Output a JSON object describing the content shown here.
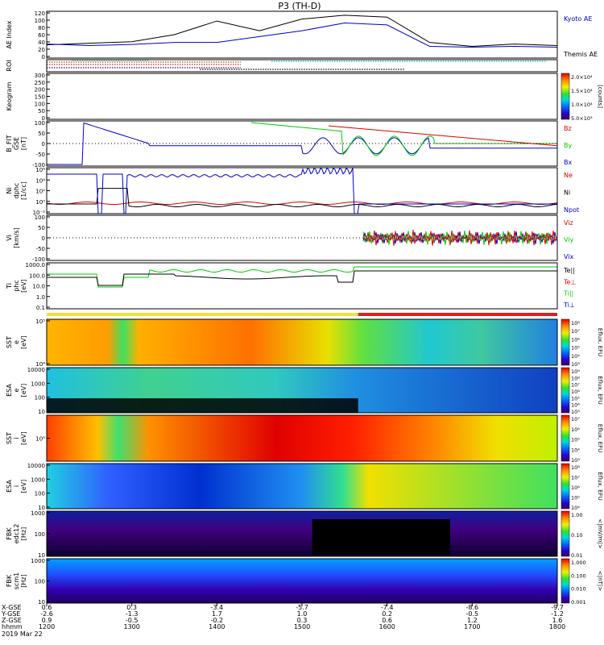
{
  "title": "P3 (TH-D)",
  "date": "2019 Mar 22",
  "colors": {
    "black": "#000000",
    "blue": "#0000cc",
    "red": "#dd0000",
    "green": "#00cc00",
    "axis": "#000000"
  },
  "chart_data": [
    {
      "id": "ae",
      "type": "line",
      "ylabel": "AE Index",
      "ylim": [
        0,
        120
      ],
      "yticks": [
        "0",
        "20",
        "40",
        "60",
        "80",
        "100",
        "120"
      ],
      "legend": [
        {
          "name": "Kyoto AE",
          "color": "#0000cc"
        },
        {
          "name": "Themis AE",
          "color": "#000000"
        }
      ],
      "x_hhmm": [
        1200,
        1230,
        1300,
        1330,
        1400,
        1430,
        1500,
        1530,
        1600,
        1630,
        1700,
        1730,
        1800
      ],
      "series": [
        {
          "name": "Themis AE",
          "values": [
            34,
            38,
            42,
            60,
            95,
            70,
            100,
            110,
            105,
            40,
            30,
            36,
            32
          ]
        },
        {
          "name": "Kyoto AE",
          "values": [
            36,
            32,
            35,
            40,
            40,
            55,
            70,
            90,
            85,
            30,
            28,
            30,
            28
          ]
        }
      ]
    },
    {
      "id": "roi",
      "type": "bar",
      "ylabel": "ROI"
    },
    {
      "id": "keogram",
      "type": "heatmap",
      "ylabel": "Keogram",
      "ylim": [
        0,
        300
      ],
      "yticks": [
        "0",
        "50",
        "100",
        "150",
        "200",
        "250",
        "300"
      ],
      "colorbar": {
        "label": "[counts]",
        "ticks": [
          "5.0×10³",
          "1.0×10⁴",
          "1.5×10⁴",
          "2.0×10⁴"
        ]
      }
    },
    {
      "id": "bfit",
      "type": "line",
      "ylabel": "B_FIT\nGSE\n[nT]",
      "ylim": [
        -100,
        100
      ],
      "yticks": [
        "-100",
        "-50",
        "0",
        "50",
        "100"
      ],
      "legend": [
        {
          "name": "Bz",
          "color": "#dd0000"
        },
        {
          "name": "By",
          "color": "#00cc00"
        },
        {
          "name": "Bx",
          "color": "#0000cc"
        }
      ]
    },
    {
      "id": "ni",
      "type": "line",
      "ylabel": "Ni\ndphc\n[1/cc]",
      "yticks": [
        "10⁻²",
        "10⁰",
        "10²",
        "10⁴",
        "10⁶"
      ],
      "legend": [
        {
          "name": "Ne",
          "color": "#dd0000"
        },
        {
          "name": "Ni",
          "color": "#000000"
        },
        {
          "name": "Npot",
          "color": "#0000cc"
        }
      ]
    },
    {
      "id": "vi",
      "type": "line",
      "ylabel": "Vi\n[km/s]",
      "ylim": [
        -100,
        100
      ],
      "yticks": [
        "-100",
        "-50",
        "0",
        "50",
        "100"
      ],
      "legend": [
        {
          "name": "Viz",
          "color": "#dd0000"
        },
        {
          "name": "Viy",
          "color": "#00cc00"
        },
        {
          "name": "Vix",
          "color": "#0000cc"
        }
      ]
    },
    {
      "id": "ti",
      "type": "line",
      "ylabel": "Ti\nphc\n[eV]",
      "yticks": [
        "0.1",
        "1.0",
        "10.0",
        "100.0",
        "1000.0"
      ],
      "legend": [
        {
          "name": "Te||",
          "color": "#000000"
        },
        {
          "name": "Te⊥",
          "color": "#dd0000"
        },
        {
          "name": "Ti||",
          "color": "#00cc00"
        },
        {
          "name": "Ti⊥",
          "color": "#0000cc"
        }
      ]
    },
    {
      "id": "sst_e",
      "type": "heatmap",
      "ylabel": "SST\ne\n[eV]",
      "yticks": [
        "10⁴",
        "10⁵"
      ],
      "colorbar": {
        "label": "Eflux, EFU",
        "ticks": [
          "10³",
          "10⁴",
          "10⁵",
          "10⁶",
          "10⁷",
          "10⁸"
        ]
      }
    },
    {
      "id": "esa_e",
      "type": "heatmap",
      "ylabel": "ESA\ne\n[eV]",
      "yticks": [
        "10",
        "100",
        "1000",
        "10000"
      ],
      "colorbar": {
        "label": "Eflux, EFU",
        "ticks": [
          "10³",
          "10⁴",
          "10⁵",
          "10⁶",
          "10⁷",
          "10⁸",
          "10⁹"
        ]
      }
    },
    {
      "id": "sst_i",
      "type": "heatmap",
      "ylabel": "SST\ni\n[eV]",
      "yticks": [
        "10⁵"
      ],
      "colorbar": {
        "label": "Eflux, EFU",
        "ticks": [
          "10³",
          "10⁴",
          "10⁵",
          "10⁶",
          "10⁷"
        ]
      }
    },
    {
      "id": "esa_i",
      "type": "heatmap",
      "ylabel": "ESA\ni\n[eV]",
      "yticks": [
        "10",
        "100",
        "1000",
        "10000"
      ],
      "colorbar": {
        "label": "Eflux, EFU",
        "ticks": [
          "10⁴",
          "10⁵",
          "10⁶",
          "10⁷",
          "10⁸"
        ]
      }
    },
    {
      "id": "fbk_e",
      "type": "heatmap",
      "ylabel": "FBK\nedc12\n[Hz]",
      "yticks": [
        "10",
        "100",
        "1000"
      ],
      "colorbar": {
        "label": "<|mV/m|>",
        "ticks": [
          "0.01",
          "0.10",
          "1.00"
        ]
      }
    },
    {
      "id": "fbk_b",
      "type": "heatmap",
      "ylabel": "FBK\nscm1\n[Hz]",
      "yticks": [
        "10",
        "100",
        "1000"
      ],
      "colorbar": {
        "label": "<|nT|>",
        "ticks": [
          "0.001",
          "0.010",
          "0.100",
          "1.000"
        ]
      }
    }
  ],
  "xaxis": {
    "row_labels": [
      "X-GSE",
      "Y-GSE",
      "Z-GSE",
      "hhmm",
      "2019 Mar 22"
    ],
    "ticks": [
      {
        "x": "0.6",
        "y": "-2.6",
        "z": "0.9",
        "hhmm": "1200"
      },
      {
        "x": "0.3",
        "y": "-1.3",
        "z": "-0.5",
        "hhmm": "1300"
      },
      {
        "x": "-3.4",
        "y": "1.7",
        "z": "-0.2",
        "hhmm": "1400"
      },
      {
        "x": "-5.7",
        "y": "1.0",
        "z": "0.3",
        "hhmm": "1500"
      },
      {
        "x": "-7.4",
        "y": "0.2",
        "z": "0.6",
        "hhmm": "1600"
      },
      {
        "x": "-8.6",
        "y": "-0.5",
        "z": "1.2",
        "hhmm": "1700"
      },
      {
        "x": "-9.7",
        "y": "-1.2",
        "z": "1.6",
        "hhmm": "1800"
      }
    ]
  }
}
